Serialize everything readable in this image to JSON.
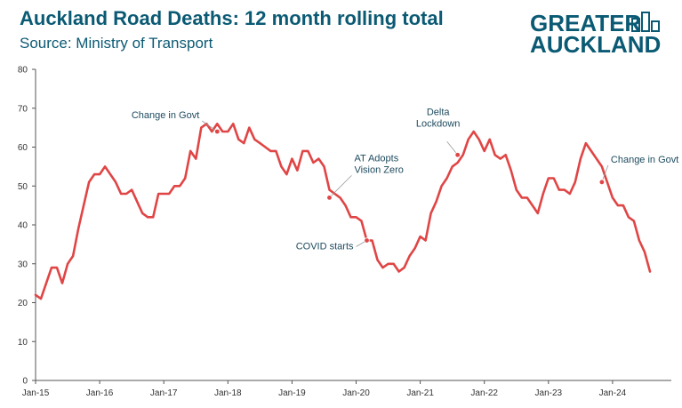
{
  "header": {
    "title": "Auckland Road Deaths: 12 month rolling total",
    "subtitle": "Source: Ministry of Transport"
  },
  "logo": {
    "line1": "GREATER",
    "line2": "AUCKLAND",
    "color": "#0b5a74"
  },
  "colors": {
    "line": "#e04545",
    "text": "#0b5a74",
    "axis": "#555555",
    "grid": "#e6e6e6"
  },
  "chart_data": {
    "type": "line",
    "title": "Auckland Road Deaths: 12 month rolling total",
    "xlabel": "",
    "ylabel": "",
    "ylim": [
      0,
      80
    ],
    "yticks": [
      0,
      10,
      20,
      30,
      40,
      50,
      60,
      70,
      80
    ],
    "xlim": [
      "2015-01",
      "2024-12"
    ],
    "xticks": [
      {
        "label": "Jan-15",
        "date": "2015-01"
      },
      {
        "label": "Jan-16",
        "date": "2016-01"
      },
      {
        "label": "Jan-17",
        "date": "2017-01"
      },
      {
        "label": "Jan-18",
        "date": "2018-01"
      },
      {
        "label": "Jan-19",
        "date": "2019-01"
      },
      {
        "label": "Jan-20",
        "date": "2020-01"
      },
      {
        "label": "Jan-21",
        "date": "2021-01"
      },
      {
        "label": "Jan-22",
        "date": "2022-01"
      },
      {
        "label": "Jan-23",
        "date": "2023-01"
      },
      {
        "label": "Jan-24",
        "date": "2024-01"
      }
    ],
    "grid": false,
    "series": [
      {
        "name": "",
        "start": "2015-01",
        "frequency": "monthly",
        "values": [
          22,
          21,
          25,
          29,
          29,
          25,
          30,
          32,
          39,
          45,
          51,
          53,
          53,
          55,
          53,
          51,
          48,
          48,
          49,
          46,
          43,
          42,
          42,
          48,
          48,
          48,
          50,
          50,
          52,
          59,
          57,
          65,
          66,
          64,
          66,
          64,
          64,
          66,
          62,
          61,
          65,
          62,
          61,
          60,
          59,
          59,
          55,
          53,
          57,
          54,
          59,
          59,
          56,
          57,
          55,
          49,
          48,
          47,
          45,
          42,
          42,
          41,
          36,
          36,
          31,
          29,
          30,
          30,
          28,
          29,
          32,
          34,
          37,
          36,
          43,
          46,
          50,
          52,
          55,
          56,
          58,
          62,
          64,
          62,
          59,
          62,
          58,
          57,
          58,
          54,
          49,
          47,
          47,
          45,
          43,
          48,
          52,
          52,
          49,
          49,
          48,
          51,
          57,
          61,
          59,
          57,
          55,
          51,
          47,
          45,
          45,
          42,
          41,
          36,
          33,
          28
        ]
      }
    ],
    "annotations": [
      {
        "lines": [
          "Change in Govt"
        ],
        "date": "2017-11",
        "value": 64
      },
      {
        "lines": [
          "AT Adopts",
          "Vision Zero"
        ],
        "date": "2019-08",
        "value": 47
      },
      {
        "lines": [
          "COVID starts"
        ],
        "date": "2020-03",
        "value": 36
      },
      {
        "lines": [
          "Delta",
          "Lockdown"
        ],
        "date": "2021-08",
        "value": 58
      },
      {
        "lines": [
          "Change in Govt"
        ],
        "date": "2023-11",
        "value": 51
      }
    ]
  }
}
